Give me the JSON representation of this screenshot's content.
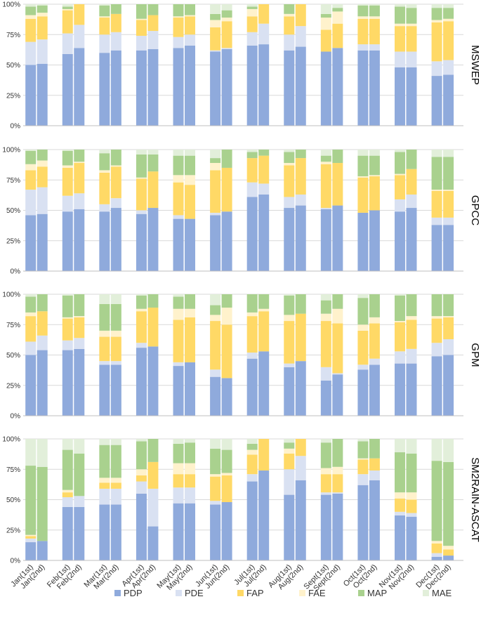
{
  "colors": {
    "PDP": "#8FAADC",
    "PDE": "#D9E1F2",
    "FAP": "#FFD966",
    "FAE": "#FFF2CC",
    "MAP": "#A9D18E",
    "MAE": "#E2EFDA"
  },
  "chart_data": {
    "type": "bar",
    "stacked": true,
    "normalized": true,
    "categories": [
      "Jan(1st)",
      "Jan(2nd)",
      "Feb(1st)",
      "Feb(2nd)",
      "Mar(1st)",
      "Mar(2nd)",
      "Apr(1st)",
      "Apr(2nd)",
      "May(1st)",
      "May(2nd)",
      "Jun(1st)",
      "Jun(2nd)",
      "Jul(1st)",
      "Jul(2nd)",
      "Aug(1st)",
      "Aug(2nd)",
      "Sept(1st)",
      "Sept(2nd)",
      "Oct(1st)",
      "Oct(2nd)",
      "Nov(1st)",
      "Nov(2nd)",
      "Dec(1st)",
      "Dec(2nd)"
    ],
    "series_names": [
      "PDP",
      "PDE",
      "FAP",
      "FAE",
      "MAP",
      "MAE"
    ],
    "y_ticks": [
      "0%",
      "25%",
      "50%",
      "75%",
      "100%"
    ],
    "ylim": [
      0,
      100
    ],
    "legend_position": "bottom",
    "panels": [
      {
        "label": "MSWEP",
        "values": [
          [
            50,
            19,
            19,
            3,
            7,
            2
          ],
          [
            51,
            20,
            19,
            3,
            6,
            1
          ],
          [
            59,
            17,
            19,
            1,
            2,
            2
          ],
          [
            64,
            19,
            17,
            0,
            0,
            0
          ],
          [
            60,
            15,
            14,
            1,
            9,
            1
          ],
          [
            62,
            15,
            15,
            0,
            8,
            0
          ],
          [
            62,
            12,
            13,
            1,
            12,
            0
          ],
          [
            63,
            15,
            13,
            0,
            9,
            0
          ],
          [
            64,
            9,
            16,
            1,
            10,
            0
          ],
          [
            66,
            9,
            15,
            1,
            9,
            0
          ],
          [
            61,
            1,
            19,
            6,
            5,
            8
          ],
          [
            63,
            1,
            22,
            3,
            6,
            5
          ],
          [
            66,
            11,
            13,
            6,
            2,
            2
          ],
          [
            67,
            17,
            16,
            0,
            0,
            0
          ],
          [
            62,
            13,
            15,
            2,
            8,
            0
          ],
          [
            65,
            17,
            18,
            0,
            0,
            0
          ],
          [
            61,
            0,
            18,
            10,
            3,
            8
          ],
          [
            64,
            0,
            20,
            10,
            3,
            3
          ],
          [
            62,
            5,
            21,
            2,
            9,
            1
          ],
          [
            62,
            5,
            21,
            2,
            9,
            1
          ],
          [
            48,
            13,
            21,
            2,
            14,
            2
          ],
          [
            48,
            13,
            21,
            2,
            13,
            3
          ],
          [
            41,
            12,
            32,
            2,
            10,
            3
          ],
          [
            42,
            12,
            32,
            2,
            9,
            3
          ]
        ]
      },
      {
        "label": "GPCC",
        "values": [
          [
            46,
            21,
            16,
            5,
            11,
            1
          ],
          [
            47,
            22,
            17,
            5,
            9,
            0
          ],
          [
            49,
            13,
            23,
            2,
            12,
            1
          ],
          [
            51,
            13,
            25,
            1,
            10,
            0
          ],
          [
            49,
            6,
            26,
            2,
            14,
            3
          ],
          [
            52,
            8,
            26,
            1,
            13,
            0
          ],
          [
            47,
            3,
            26,
            1,
            19,
            4
          ],
          [
            52,
            0,
            30,
            0,
            14,
            4
          ],
          [
            43,
            3,
            27,
            6,
            16,
            5
          ],
          [
            43,
            0,
            28,
            8,
            16,
            5
          ],
          [
            46,
            2,
            35,
            6,
            4,
            7
          ],
          [
            49,
            0,
            36,
            0,
            15,
            0
          ],
          [
            61,
            12,
            20,
            0,
            5,
            2
          ],
          [
            63,
            9,
            23,
            0,
            5,
            0
          ],
          [
            52,
            9,
            26,
            2,
            9,
            2
          ],
          [
            54,
            9,
            30,
            0,
            7,
            0
          ],
          [
            51,
            1,
            36,
            2,
            5,
            5
          ],
          [
            54,
            0,
            35,
            0,
            11,
            0
          ],
          [
            48,
            0,
            29,
            1,
            17,
            5
          ],
          [
            50,
            0,
            28,
            1,
            16,
            5
          ],
          [
            49,
            10,
            20,
            1,
            18,
            2
          ],
          [
            52,
            11,
            21,
            0,
            16,
            0
          ],
          [
            38,
            6,
            22,
            1,
            27,
            6
          ],
          [
            38,
            6,
            22,
            1,
            27,
            6
          ]
        ]
      },
      {
        "label": "GPM",
        "values": [
          [
            50,
            11,
            21,
            3,
            13,
            2
          ],
          [
            54,
            12,
            20,
            0,
            14,
            0
          ],
          [
            54,
            8,
            18,
            1,
            18,
            1
          ],
          [
            55,
            9,
            17,
            1,
            18,
            0
          ],
          [
            42,
            3,
            20,
            5,
            22,
            8
          ],
          [
            42,
            3,
            20,
            5,
            22,
            8
          ],
          [
            56,
            4,
            26,
            2,
            11,
            1
          ],
          [
            57,
            0,
            32,
            0,
            11,
            0
          ],
          [
            41,
            3,
            35,
            9,
            10,
            2
          ],
          [
            44,
            0,
            37,
            7,
            12,
            0
          ],
          [
            32,
            6,
            40,
            5,
            8,
            9
          ],
          [
            31,
            0,
            44,
            14,
            11,
            0
          ],
          [
            47,
            5,
            30,
            3,
            15,
            0
          ],
          [
            53,
            0,
            33,
            2,
            12,
            0
          ],
          [
            40,
            3,
            35,
            5,
            16,
            1
          ],
          [
            45,
            0,
            39,
            0,
            16,
            0
          ],
          [
            29,
            11,
            38,
            6,
            11,
            5
          ],
          [
            34,
            1,
            41,
            12,
            12,
            0
          ],
          [
            38,
            4,
            28,
            5,
            22,
            3
          ],
          [
            42,
            5,
            29,
            5,
            19,
            0
          ],
          [
            43,
            10,
            24,
            1,
            21,
            1
          ],
          [
            43,
            12,
            24,
            3,
            18,
            0
          ],
          [
            49,
            11,
            20,
            2,
            18,
            0
          ],
          [
            50,
            13,
            18,
            1,
            18,
            0
          ]
        ]
      },
      {
        "label": "SM2RAIN-ASCAT",
        "values": [
          [
            15,
            3,
            2,
            1,
            57,
            22
          ],
          [
            16,
            0,
            0,
            0,
            61,
            23
          ],
          [
            44,
            8,
            4,
            2,
            33,
            9
          ],
          [
            44,
            9,
            0,
            0,
            35,
            12
          ],
          [
            46,
            13,
            5,
            4,
            27,
            5
          ],
          [
            46,
            13,
            5,
            4,
            27,
            5
          ],
          [
            55,
            10,
            5,
            5,
            23,
            2
          ],
          [
            28,
            31,
            22,
            0,
            19,
            0
          ],
          [
            47,
            13,
            11,
            9,
            16,
            4
          ],
          [
            47,
            13,
            11,
            9,
            17,
            3
          ],
          [
            46,
            3,
            20,
            2,
            21,
            8
          ],
          [
            48,
            0,
            22,
            2,
            19,
            9
          ],
          [
            65,
            6,
            16,
            4,
            5,
            4
          ],
          [
            74,
            0,
            26,
            0,
            0,
            0
          ],
          [
            54,
            21,
            13,
            4,
            5,
            3
          ],
          [
            66,
            20,
            14,
            0,
            0,
            0
          ],
          [
            54,
            2,
            15,
            5,
            21,
            3
          ],
          [
            55,
            1,
            15,
            6,
            23,
            0
          ],
          [
            62,
            9,
            12,
            1,
            14,
            2
          ],
          [
            66,
            8,
            10,
            0,
            16,
            0
          ],
          [
            37,
            3,
            11,
            5,
            33,
            11
          ],
          [
            36,
            3,
            11,
            6,
            32,
            12
          ],
          [
            3,
            3,
            8,
            2,
            66,
            18
          ],
          [
            4,
            0,
            5,
            3,
            69,
            19
          ]
        ]
      }
    ]
  }
}
